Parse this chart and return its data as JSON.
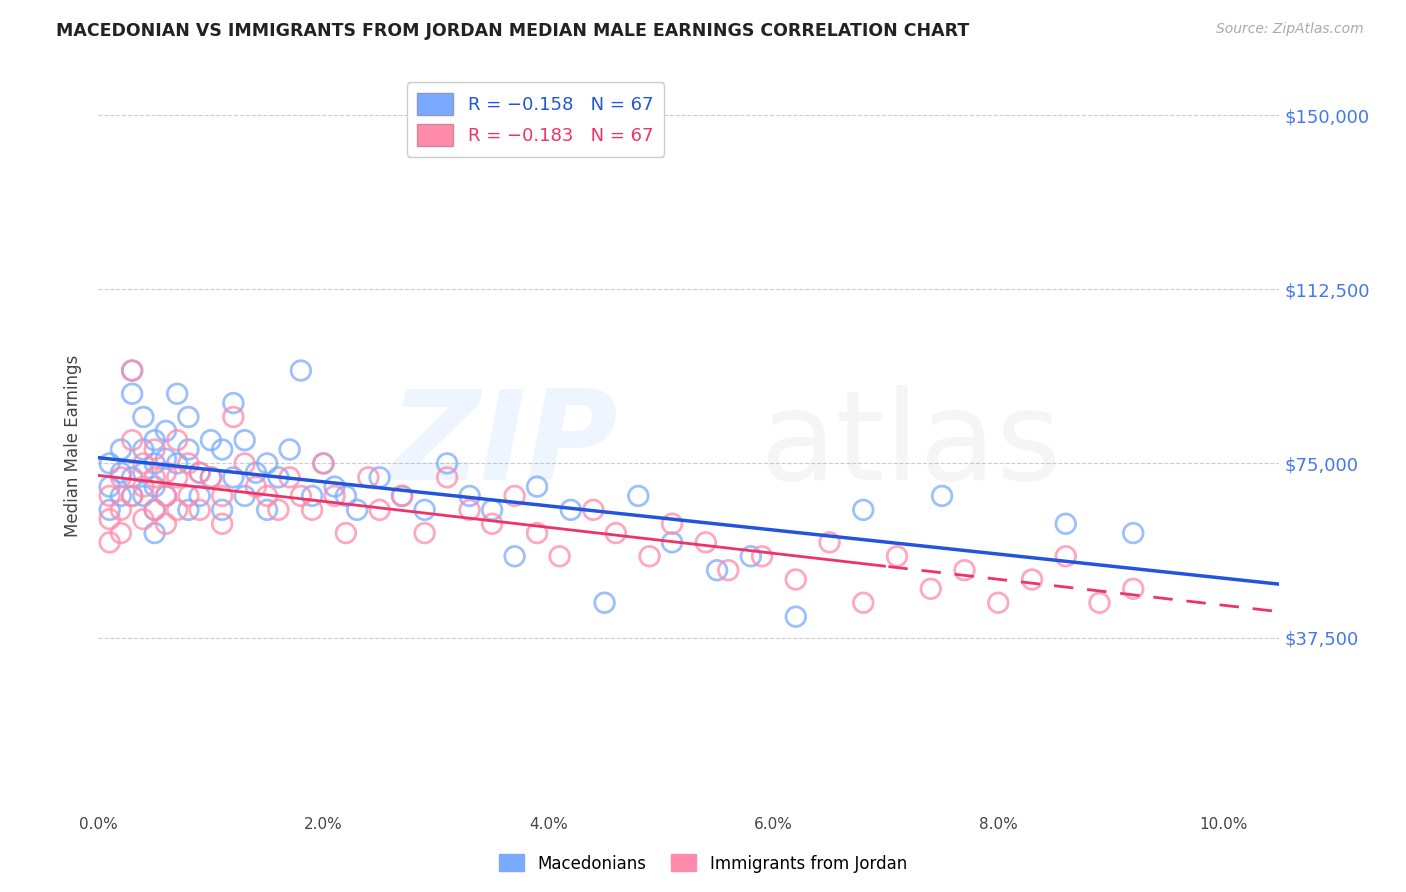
{
  "title": "MACEDONIAN VS IMMIGRANTS FROM JORDAN MEDIAN MALE EARNINGS CORRELATION CHART",
  "source": "Source: ZipAtlas.com",
  "ylabel": "Median Male Earnings",
  "xlim": [
    0.0,
    0.105
  ],
  "ylim": [
    0,
    157500
  ],
  "ytick_vals": [
    37500,
    75000,
    112500,
    150000
  ],
  "ytick_labels": [
    "$37,500",
    "$75,000",
    "$112,500",
    "$150,000"
  ],
  "xtick_vals": [
    0.0,
    0.02,
    0.04,
    0.06,
    0.08,
    0.1
  ],
  "xtick_labels": [
    "0.0%",
    "2.0%",
    "4.0%",
    "6.0%",
    "8.0%",
    "10.0%"
  ],
  "legend1_label": "R = −0.158   N = 67",
  "legend2_label": "R = −0.183   N = 67",
  "blue_color": "#7aaaff",
  "pink_color": "#ff8aaa",
  "trend_blue": "#2255dd",
  "trend_pink": "#ee3366",
  "macedonians_x": [
    0.001,
    0.001,
    0.001,
    0.002,
    0.002,
    0.002,
    0.003,
    0.003,
    0.003,
    0.003,
    0.004,
    0.004,
    0.004,
    0.004,
    0.005,
    0.005,
    0.005,
    0.005,
    0.005,
    0.006,
    0.006,
    0.006,
    0.007,
    0.007,
    0.008,
    0.008,
    0.008,
    0.009,
    0.009,
    0.01,
    0.01,
    0.011,
    0.011,
    0.012,
    0.012,
    0.013,
    0.013,
    0.014,
    0.015,
    0.015,
    0.016,
    0.017,
    0.018,
    0.019,
    0.02,
    0.021,
    0.022,
    0.023,
    0.025,
    0.027,
    0.029,
    0.031,
    0.033,
    0.035,
    0.037,
    0.039,
    0.042,
    0.045,
    0.048,
    0.051,
    0.055,
    0.058,
    0.062,
    0.068,
    0.075,
    0.086,
    0.092
  ],
  "macedonians_y": [
    75000,
    70000,
    65000,
    78000,
    73000,
    68000,
    95000,
    90000,
    72000,
    68000,
    85000,
    78000,
    73000,
    68000,
    80000,
    75000,
    70000,
    65000,
    60000,
    82000,
    76000,
    68000,
    90000,
    75000,
    85000,
    78000,
    65000,
    73000,
    68000,
    80000,
    72000,
    78000,
    65000,
    88000,
    72000,
    80000,
    68000,
    73000,
    75000,
    65000,
    72000,
    78000,
    95000,
    68000,
    75000,
    70000,
    68000,
    65000,
    72000,
    68000,
    65000,
    75000,
    68000,
    65000,
    55000,
    70000,
    65000,
    45000,
    68000,
    58000,
    52000,
    55000,
    42000,
    65000,
    68000,
    62000,
    60000
  ],
  "jordan_x": [
    0.001,
    0.001,
    0.001,
    0.002,
    0.002,
    0.002,
    0.003,
    0.003,
    0.003,
    0.004,
    0.004,
    0.004,
    0.005,
    0.005,
    0.005,
    0.006,
    0.006,
    0.006,
    0.007,
    0.007,
    0.007,
    0.008,
    0.008,
    0.009,
    0.009,
    0.01,
    0.011,
    0.011,
    0.012,
    0.013,
    0.014,
    0.015,
    0.016,
    0.017,
    0.018,
    0.019,
    0.02,
    0.021,
    0.022,
    0.024,
    0.025,
    0.027,
    0.029,
    0.031,
    0.033,
    0.035,
    0.037,
    0.039,
    0.041,
    0.044,
    0.046,
    0.049,
    0.051,
    0.054,
    0.056,
    0.059,
    0.062,
    0.065,
    0.068,
    0.071,
    0.074,
    0.077,
    0.08,
    0.083,
    0.086,
    0.089,
    0.092
  ],
  "jordan_y": [
    68000,
    63000,
    58000,
    72000,
    65000,
    60000,
    95000,
    80000,
    68000,
    75000,
    70000,
    63000,
    78000,
    72000,
    65000,
    73000,
    68000,
    62000,
    80000,
    72000,
    65000,
    75000,
    68000,
    73000,
    65000,
    72000,
    68000,
    62000,
    85000,
    75000,
    70000,
    68000,
    65000,
    72000,
    68000,
    65000,
    75000,
    68000,
    60000,
    72000,
    65000,
    68000,
    60000,
    72000,
    65000,
    62000,
    68000,
    60000,
    55000,
    65000,
    60000,
    55000,
    62000,
    58000,
    52000,
    55000,
    50000,
    58000,
    45000,
    55000,
    48000,
    52000,
    45000,
    50000,
    55000,
    45000,
    48000
  ]
}
